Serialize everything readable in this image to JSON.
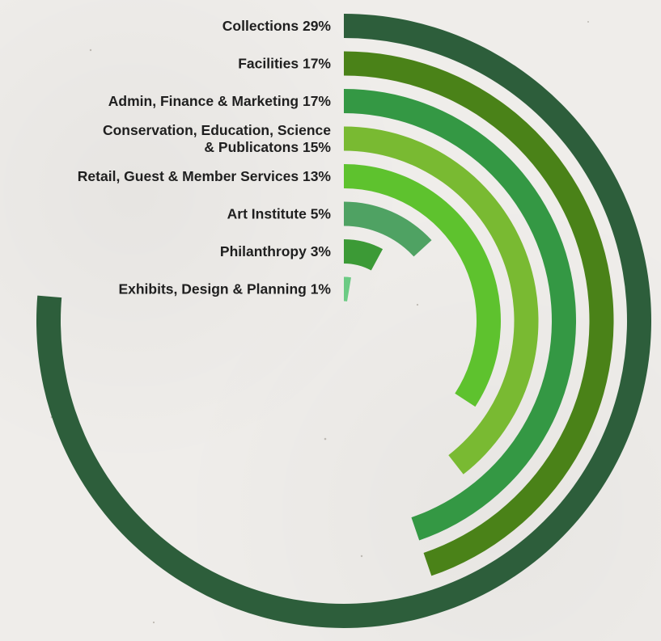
{
  "chart_data": {
    "type": "radial-bar",
    "unit": "%",
    "max_value": 38,
    "series": [
      {
        "label_lines": [
          "Collections"
        ],
        "value": 29,
        "display": "29%",
        "color": "#2d5e3b"
      },
      {
        "label_lines": [
          "Facilities"
        ],
        "value": 17,
        "display": "17%",
        "color": "#4a8218"
      },
      {
        "label_lines": [
          "Admin, Finance & Marketing"
        ],
        "value": 17,
        "display": "17%",
        "color": "#349844"
      },
      {
        "label_lines": [
          "Conservation, Education, Science",
          "& Publicatons"
        ],
        "value": 15,
        "display": "15%",
        "color": "#79ba32"
      },
      {
        "label_lines": [
          "Retail, Guest & Member Services"
        ],
        "value": 13,
        "display": "13%",
        "color": "#5ec22e"
      },
      {
        "label_lines": [
          "Art Institute"
        ],
        "value": 5,
        "display": "5%",
        "color": "#4fa263"
      },
      {
        "label_lines": [
          "Philanthropy"
        ],
        "value": 3,
        "display": "3%",
        "color": "#3c9a36"
      },
      {
        "label_lines": [
          "Exhibits, Design & Planning"
        ],
        "value": 1,
        "display": "1%",
        "color": "#6ccb84"
      }
    ]
  }
}
